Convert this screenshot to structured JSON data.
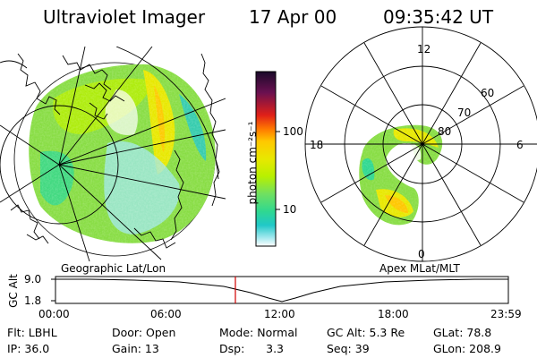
{
  "header": {
    "instrument": "Ultraviolet Imager",
    "date": "17 Apr 00",
    "time": "09:35:42 UT"
  },
  "colorbar": {
    "unit_label": "photon cm⁻²s⁻¹",
    "ticks": [
      "100",
      "10"
    ],
    "colors": [
      "#1a0a2a",
      "#3a1040",
      "#6a1050",
      "#b01038",
      "#e02018",
      "#ff7a00",
      "#ffc800",
      "#e8e800",
      "#b8f000",
      "#70e060",
      "#30d890",
      "#20c8c8",
      "#a0e8ee",
      "#ffffff"
    ]
  },
  "geo_panel": {
    "label": "Geographic Lat/Lon"
  },
  "polar_panel": {
    "label": "Apex MLat/MLT",
    "mlt_labels": {
      "top": "12",
      "left": "18",
      "right": "6",
      "bottom": "0"
    },
    "lat_labels": [
      "60",
      "70",
      "80"
    ]
  },
  "altitude_plot": {
    "ylabel": "GC Alt",
    "yticks": [
      "9.0",
      "1.8"
    ],
    "xticks": [
      "00:00",
      "06:00",
      "12:00",
      "18:00",
      "23:59"
    ],
    "marker_time": "09:35",
    "marker_color": "#d00000",
    "line_color": "#000000"
  },
  "info": {
    "row1": {
      "flt": "Flt: LBHL",
      "door": "Door: Open",
      "mode": "Mode: Normal",
      "gcalt": "GC Alt: 5.3 Re",
      "glat": "GLat:  78.8"
    },
    "row2": {
      "ip": "IP: 36.0",
      "gain": "Gain: 13",
      "dsp": "Dsp:      3.3",
      "seq": "Seq: 39",
      "glon": "GLon: 208.9"
    }
  }
}
